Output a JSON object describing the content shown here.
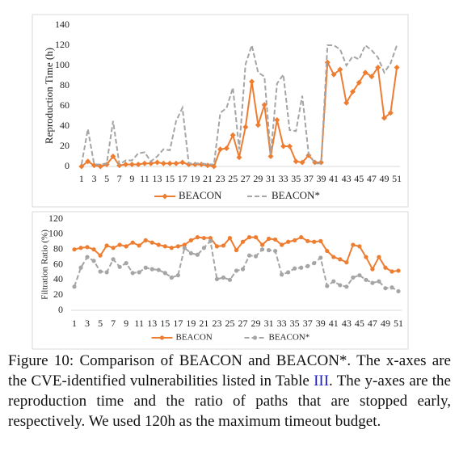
{
  "chart_data": [
    {
      "type": "line",
      "y_label": "Reproduction Time (h)",
      "categories": [
        "1",
        null,
        "3",
        null,
        "5",
        null,
        "7",
        null,
        "9",
        null,
        "11",
        null,
        "13",
        null,
        "15",
        null,
        "17",
        null,
        "19",
        null,
        "21",
        null,
        "23",
        null,
        "25",
        null,
        "27",
        null,
        "29",
        null,
        "31",
        null,
        "33",
        null,
        "35",
        null,
        "37",
        null,
        "39",
        null,
        "41",
        null,
        "43",
        null,
        "45",
        null,
        "47",
        null,
        "49",
        null,
        "51"
      ],
      "ylim": [
        0,
        140
      ],
      "yticks": [
        0,
        20,
        40,
        60,
        80,
        100,
        120,
        140
      ],
      "legend": "bottom",
      "series": [
        {
          "name": "BEACON",
          "color": "#ed7d31",
          "marker": "diamond",
          "dashed": false,
          "values": [
            0,
            5,
            1,
            0,
            2,
            10,
            1,
            2,
            2,
            2,
            3,
            3,
            4,
            3,
            3,
            3,
            4,
            2,
            2,
            2,
            1,
            0,
            17,
            18,
            31,
            9,
            39,
            84,
            41,
            61,
            10,
            46,
            20,
            20,
            5,
            4,
            11,
            4,
            4,
            103,
            91,
            96,
            63,
            74,
            83,
            93,
            89,
            98,
            48,
            53,
            98
          ]
        },
        {
          "name": "BEACON*",
          "color": "#a5a5a5",
          "marker": "none",
          "dashed": true,
          "values": [
            2,
            37,
            2,
            2,
            3,
            45,
            2,
            6,
            6,
            13,
            14,
            5,
            10,
            17,
            16,
            45,
            58,
            3,
            3,
            3,
            2,
            2,
            53,
            58,
            78,
            17,
            101,
            120,
            93,
            89,
            12,
            82,
            91,
            36,
            35,
            70,
            13,
            3,
            3,
            120,
            120,
            116,
            100,
            109,
            106,
            120,
            115,
            108,
            93,
            102,
            120
          ]
        }
      ]
    },
    {
      "type": "line",
      "y_label": "Filtration Ratio (%)",
      "categories": [
        "1",
        null,
        "3",
        null,
        "5",
        null,
        "7",
        null,
        "9",
        null,
        "11",
        null,
        "13",
        null,
        "15",
        null,
        "17",
        null,
        "19",
        null,
        "21",
        null,
        "23",
        null,
        "25",
        null,
        "27",
        null,
        "29",
        null,
        "31",
        null,
        "33",
        null,
        "35",
        null,
        "37",
        null,
        "39",
        null,
        "41",
        null,
        "43",
        null,
        "45",
        null,
        "47",
        null,
        "49",
        null,
        "51"
      ],
      "ylim": [
        0,
        120
      ],
      "yticks": [
        0,
        20,
        40,
        60,
        80,
        100,
        120
      ],
      "legend": "bottom",
      "series": [
        {
          "name": "BEACON",
          "color": "#ed7d31",
          "marker": "circle",
          "dashed": false,
          "values": [
            80,
            82,
            83,
            80,
            72,
            85,
            82,
            86,
            84,
            89,
            85,
            92,
            89,
            86,
            84,
            82,
            84,
            86,
            92,
            96,
            95,
            95,
            84,
            85,
            95,
            79,
            90,
            96,
            96,
            86,
            94,
            93,
            86,
            90,
            92,
            96,
            91,
            90,
            91,
            78,
            70,
            67,
            63,
            86,
            84,
            70,
            54,
            70,
            56,
            51,
            52
          ]
        },
        {
          "name": "BEACON*",
          "color": "#a5a5a5",
          "marker": "circle",
          "dashed": true,
          "values": [
            31,
            56,
            70,
            65,
            51,
            50,
            67,
            57,
            62,
            49,
            50,
            56,
            54,
            53,
            49,
            43,
            46,
            82,
            75,
            73,
            82,
            91,
            41,
            43,
            40,
            52,
            54,
            72,
            71,
            80,
            79,
            78,
            47,
            50,
            55,
            56,
            58,
            62,
            69,
            32,
            38,
            33,
            31,
            43,
            46,
            40,
            36,
            38,
            29,
            30,
            25
          ]
        }
      ]
    }
  ],
  "caption": {
    "before": "Figure 10: Comparison of BEACON and BEACON*. The x-axes are the CVE-identified vulnerabilities listed in Table ",
    "ref": "III",
    "after": ". The y-axes are the reproduction time and the ratio of paths that are stopped early, respectively. We used 120h as the maximum timeout budget."
  }
}
